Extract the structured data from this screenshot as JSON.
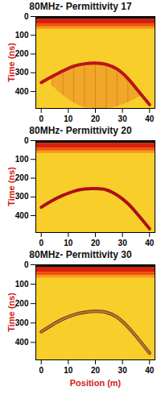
{
  "chart_data": [
    {
      "type": "line",
      "title": "80MHz- Permittivity 17",
      "ylabel": "Time (ns)",
      "xlim": [
        -2,
        42
      ],
      "xticks": [
        0,
        10,
        20,
        30,
        40
      ],
      "ylim": [
        0,
        490
      ],
      "yticks": [
        0,
        100,
        200,
        300,
        400
      ],
      "bands": [
        {
          "from": 0,
          "to": 490,
          "color": "#f8cf2a"
        },
        {
          "from": 0,
          "to": 15,
          "color": "#1a0505"
        },
        {
          "from": 15,
          "to": 40,
          "color": "#d81e10"
        },
        {
          "from": 40,
          "to": 55,
          "color": "#f05010"
        },
        {
          "from": 55,
          "to": 68,
          "color": "#f59a20"
        }
      ],
      "area": {
        "x": [
          4,
          8,
          12,
          16,
          20,
          24,
          28,
          32,
          36
        ],
        "upper": [
          320,
          290,
          265,
          252,
          248,
          255,
          280,
          330,
          400
        ],
        "lower": [
          370,
          420,
          460,
          485,
          490,
          490,
          480,
          460,
          430
        ],
        "color": "#f0a02a"
      },
      "series": [
        {
          "color": "#c0141a",
          "x": [
            0,
            4,
            8,
            12,
            16,
            20,
            24,
            28,
            32,
            36,
            40
          ],
          "values": [
            352,
            320,
            290,
            265,
            252,
            248,
            255,
            280,
            330,
            400,
            470
          ]
        }
      ]
    },
    {
      "type": "line",
      "title": "80MHz- Permittivity 20",
      "ylabel": "Time (ns)",
      "xlim": [
        -2,
        42
      ],
      "xticks": [
        0,
        10,
        20,
        30,
        40
      ],
      "ylim": [
        0,
        490
      ],
      "yticks": [
        0,
        100,
        200,
        300,
        400
      ],
      "bands": [
        {
          "from": 0,
          "to": 490,
          "color": "#f8cf2a"
        },
        {
          "from": 0,
          "to": 15,
          "color": "#1a0505"
        },
        {
          "from": 15,
          "to": 40,
          "color": "#d81e10"
        },
        {
          "from": 40,
          "to": 55,
          "color": "#f05010"
        },
        {
          "from": 55,
          "to": 68,
          "color": "#f59a20"
        }
      ],
      "series": [
        {
          "color": "#a8101a",
          "x": [
            0,
            4,
            8,
            12,
            16,
            20,
            24,
            28,
            32,
            36,
            40
          ],
          "values": [
            355,
            320,
            292,
            270,
            258,
            256,
            262,
            290,
            335,
            400,
            470
          ]
        }
      ]
    },
    {
      "type": "line",
      "title": "80MHz- Permittivity 30",
      "ylabel": "Time (ns)",
      "xlabel": "Position (m)",
      "xlim": [
        -2,
        42
      ],
      "xticks": [
        0,
        10,
        20,
        30,
        40
      ],
      "ylim": [
        0,
        490
      ],
      "yticks": [
        0,
        100,
        200,
        300,
        400
      ],
      "bands": [
        {
          "from": 0,
          "to": 490,
          "color": "#f8cf2a"
        },
        {
          "from": 0,
          "to": 15,
          "color": "#1a0505"
        },
        {
          "from": 15,
          "to": 40,
          "color": "#d81e10"
        },
        {
          "from": 40,
          "to": 55,
          "color": "#f05010"
        },
        {
          "from": 55,
          "to": 68,
          "color": "#f59a20"
        }
      ],
      "series": [
        {
          "color": "#7f9a3a",
          "x": [
            0,
            4,
            8,
            12,
            16,
            20,
            24,
            28,
            32,
            36,
            40
          ],
          "values": [
            345,
            310,
            280,
            258,
            245,
            240,
            245,
            270,
            320,
            385,
            455
          ]
        }
      ]
    }
  ]
}
